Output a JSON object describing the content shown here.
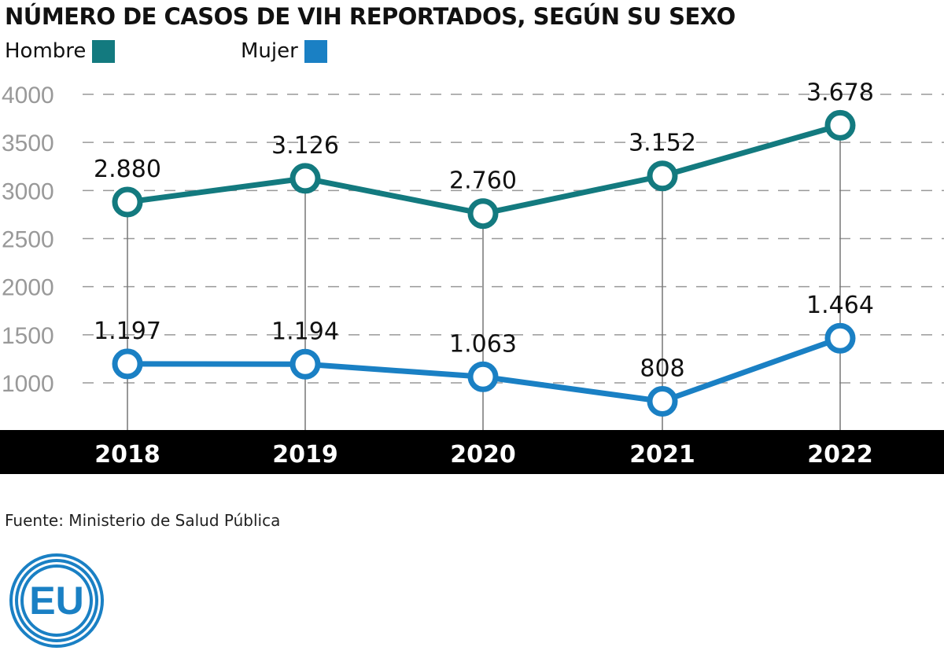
{
  "chart_data": {
    "type": "line",
    "title": "NÚMERO DE CASOS DE VIH REPORTADOS, SEGÚN SU SEXO",
    "categories": [
      "2018",
      "2019",
      "2020",
      "2021",
      "2022"
    ],
    "series": [
      {
        "name": "Hombre",
        "color": "#137a7f",
        "values": [
          2880,
          3126,
          2760,
          3152,
          3678
        ],
        "labels": [
          "2.880",
          "3.126",
          "2.760",
          "3.152",
          "3.678"
        ]
      },
      {
        "name": "Mujer",
        "color": "#1a80c4",
        "values": [
          1197,
          1194,
          1063,
          808,
          1464
        ],
        "labels": [
          "1.197",
          "1.194",
          "1.063",
          "808",
          "1.464"
        ]
      }
    ],
    "yticks": [
      "1000",
      "1500",
      "2000",
      "2500",
      "3000",
      "3500",
      "4000"
    ],
    "ylim": [
      1000,
      4000
    ],
    "grid": true,
    "legend": "top-left",
    "xlabel": "",
    "ylabel": ""
  },
  "source": "Fuente: Ministerio de Salud Pública",
  "logo_text": "EU",
  "logo_color": "#1a80c4"
}
